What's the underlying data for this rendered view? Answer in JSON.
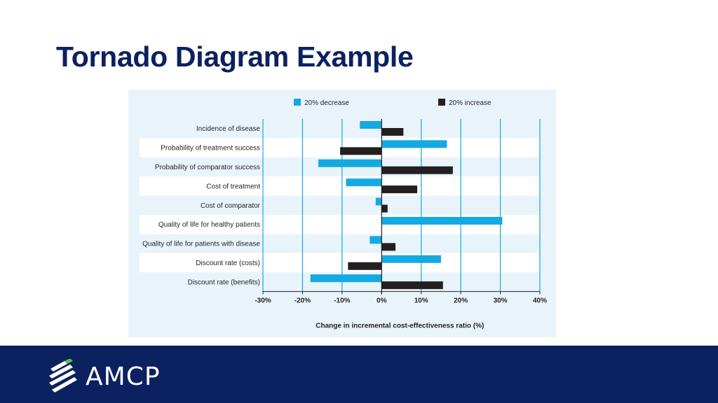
{
  "slide": {
    "title": "Tornado Diagram Example"
  },
  "footer": {
    "logo_text": "AMCP",
    "logo_icon": "amcp-stripes-logo-icon",
    "background_color": "#0b2160",
    "accent_color": "#5ac13a"
  },
  "chart_data": {
    "type": "bar",
    "orientation": "horizontal",
    "variant": "tornado",
    "xlabel": "Change in incremental cost-effectiveness ratio (%)",
    "xlim": [
      -30,
      40
    ],
    "xticks": [
      -30,
      -20,
      -10,
      0,
      10,
      20,
      30,
      40
    ],
    "xtick_labels": [
      "-30%",
      "-20%",
      "-10%",
      "0%",
      "10%",
      "20%",
      "30%",
      "40%"
    ],
    "grid": true,
    "legend_position": "top",
    "categories": [
      "Incidence of disease",
      "Probability of treatment success",
      "Probability of comparator success",
      "Cost of treatment",
      "Cost of comparator",
      "Quality of life for healthy patients",
      "Quality of life for patients with disease",
      "Discount rate (costs)",
      "Discount rate (benefits)"
    ],
    "series": [
      {
        "name": "20% decrease",
        "color": "#14a9e3",
        "values": [
          -5.5,
          16.5,
          -16,
          -9,
          -1.5,
          30.5,
          -3,
          15,
          -18
        ]
      },
      {
        "name": "20% increase",
        "color": "#231f20",
        "values": [
          5.5,
          -10.5,
          18,
          9,
          1.5,
          0,
          3.5,
          -8.5,
          15.5
        ]
      }
    ]
  }
}
